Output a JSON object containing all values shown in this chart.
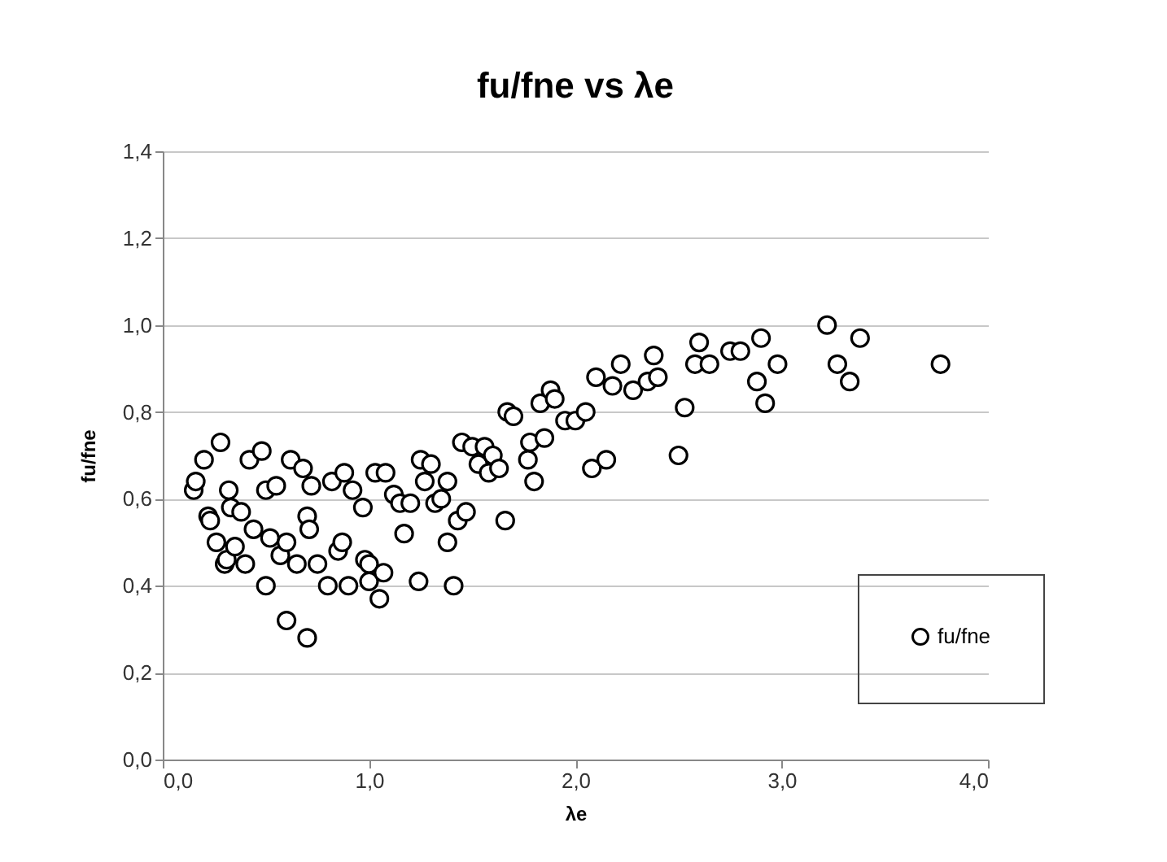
{
  "chart_data": {
    "type": "scatter",
    "title": "fu/fne vs λe",
    "xlabel": "λe",
    "ylabel": "fu/fne",
    "xlim": [
      0,
      4
    ],
    "xticks": [
      {
        "value": 0,
        "label": "0,0"
      },
      {
        "value": 1,
        "label": "1,0"
      },
      {
        "value": 2,
        "label": "2,0"
      },
      {
        "value": 3,
        "label": "3,0"
      },
      {
        "value": 4,
        "label": "4,0"
      }
    ],
    "ylim": [
      0,
      1.4
    ],
    "yticks": [
      {
        "value": 0,
        "label": "0,0"
      },
      {
        "value": 0.2,
        "label": "0,2"
      },
      {
        "value": 0.4,
        "label": "0,4"
      },
      {
        "value": 0.6,
        "label": "0,6"
      },
      {
        "value": 0.8,
        "label": "0,8"
      },
      {
        "value": 1,
        "label": "1,0"
      },
      {
        "value": 1.2,
        "label": "1,2"
      },
      {
        "value": 1.4,
        "label": "1,4"
      }
    ],
    "grid": "y",
    "legend": "bottom right",
    "marker": "circle",
    "series": [
      {
        "name": "fu/fne",
        "color": "#000000",
        "x": [
          0.15,
          0.16,
          0.2,
          0.22,
          0.23,
          0.26,
          0.28,
          0.3,
          0.31,
          0.32,
          0.33,
          0.35,
          0.38,
          0.4,
          0.42,
          0.44,
          0.48,
          0.5,
          0.5,
          0.52,
          0.55,
          0.57,
          0.6,
          0.6,
          0.62,
          0.65,
          0.68,
          0.7,
          0.7,
          0.71,
          0.72,
          0.75,
          0.8,
          0.82,
          0.85,
          0.87,
          0.88,
          0.9,
          0.92,
          0.97,
          0.98,
          1.0,
          1.0,
          1.03,
          1.05,
          1.07,
          1.08,
          1.12,
          1.15,
          1.17,
          1.2,
          1.24,
          1.25,
          1.27,
          1.3,
          1.32,
          1.35,
          1.38,
          1.38,
          1.41,
          1.43,
          1.45,
          1.47,
          1.5,
          1.53,
          1.56,
          1.58,
          1.6,
          1.63,
          1.66,
          1.67,
          1.7,
          1.77,
          1.8,
          1.78,
          1.83,
          1.85,
          1.88,
          1.9,
          1.95,
          2.0,
          2.05,
          2.08,
          2.1,
          2.15,
          2.18,
          2.22,
          2.28,
          2.35,
          2.38,
          2.4,
          2.5,
          2.53,
          2.58,
          2.6,
          2.65,
          2.75,
          2.8,
          2.88,
          2.9,
          2.92,
          2.98,
          3.22,
          3.27,
          3.33,
          3.38,
          3.77
        ],
        "values": [
          0.62,
          0.64,
          0.69,
          0.56,
          0.55,
          0.5,
          0.73,
          0.45,
          0.46,
          0.62,
          0.58,
          0.49,
          0.57,
          0.45,
          0.69,
          0.53,
          0.71,
          0.4,
          0.62,
          0.51,
          0.63,
          0.47,
          0.32,
          0.5,
          0.69,
          0.45,
          0.67,
          0.28,
          0.56,
          0.53,
          0.63,
          0.45,
          0.4,
          0.64,
          0.48,
          0.5,
          0.66,
          0.4,
          0.62,
          0.58,
          0.46,
          0.45,
          0.41,
          0.66,
          0.37,
          0.43,
          0.66,
          0.61,
          0.59,
          0.52,
          0.59,
          0.41,
          0.69,
          0.64,
          0.68,
          0.59,
          0.6,
          0.64,
          0.5,
          0.4,
          0.55,
          0.73,
          0.57,
          0.72,
          0.68,
          0.72,
          0.66,
          0.7,
          0.67,
          0.55,
          0.8,
          0.79,
          0.69,
          0.64,
          0.73,
          0.82,
          0.74,
          0.85,
          0.83,
          0.78,
          0.78,
          0.8,
          0.67,
          0.88,
          0.69,
          0.86,
          0.91,
          0.85,
          0.87,
          0.93,
          0.88,
          0.7,
          0.81,
          0.91,
          0.96,
          0.91,
          0.94,
          0.94,
          0.87,
          0.97,
          0.82,
          0.91,
          1.0,
          0.91,
          0.87,
          0.97,
          0.91
        ]
      }
    ]
  }
}
